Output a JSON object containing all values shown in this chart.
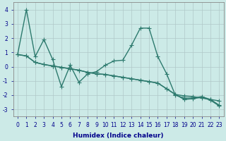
{
  "xlabel": "Humidex (Indice chaleur)",
  "background_color": "#cceae7",
  "grid_color": "#b0c8c8",
  "line_color": "#2d7a6e",
  "xlim": [
    -0.5,
    23.5
  ],
  "ylim": [
    -3.5,
    4.5
  ],
  "xticks": [
    0,
    1,
    2,
    3,
    4,
    5,
    6,
    7,
    8,
    9,
    10,
    11,
    12,
    13,
    14,
    15,
    16,
    17,
    18,
    19,
    20,
    21,
    22,
    23
  ],
  "yticks": [
    -3,
    -2,
    -1,
    0,
    1,
    2,
    3,
    4
  ],
  "series1_x": [
    0,
    1,
    2,
    3,
    4,
    5,
    6,
    7,
    8,
    9,
    10,
    11,
    12,
    13,
    14,
    15,
    16,
    17,
    18,
    19,
    20,
    21,
    22,
    23
  ],
  "series1_y": [
    0.85,
    4.0,
    0.7,
    1.9,
    0.5,
    -1.4,
    0.1,
    -1.1,
    -0.5,
    -0.35,
    0.1,
    0.4,
    0.45,
    1.5,
    2.7,
    2.7,
    0.7,
    -0.5,
    -2.0,
    -2.2,
    -2.2,
    -2.1,
    -2.3,
    -2.7
  ],
  "series2_x": [
    0,
    1,
    2,
    3,
    4,
    5,
    6,
    7,
    8,
    9,
    10,
    11,
    12,
    13,
    14,
    15,
    16,
    17,
    18,
    19,
    20,
    21,
    22,
    23
  ],
  "series2_y": [
    0.85,
    0.75,
    0.3,
    0.15,
    0.05,
    -0.05,
    -0.15,
    -0.25,
    -0.4,
    -0.5,
    -0.55,
    -0.65,
    -0.75,
    -0.85,
    -0.95,
    -1.05,
    -1.15,
    -1.55,
    -1.95,
    -2.05,
    -2.1,
    -2.2,
    -2.3,
    -2.4
  ],
  "series3_x": [
    0,
    1,
    2,
    3,
    4,
    5,
    6,
    7,
    8,
    9,
    10,
    11,
    12,
    13,
    14,
    15,
    16,
    17,
    18,
    19,
    20,
    21,
    22,
    23
  ],
  "series3_y": [
    0.85,
    0.75,
    0.3,
    0.15,
    0.05,
    -0.05,
    -0.15,
    -0.25,
    -0.4,
    -0.5,
    -0.55,
    -0.65,
    -0.75,
    -0.85,
    -0.95,
    -1.05,
    -1.15,
    -1.55,
    -1.95,
    -2.3,
    -2.25,
    -2.15,
    -2.35,
    -2.75
  ],
  "marker_size": 3,
  "line_width": 1.0,
  "xlabel_color": "#00008b",
  "tick_label_color": "#00008b",
  "xlabel_fontsize": 6.5,
  "tick_fontsize": 5.5
}
